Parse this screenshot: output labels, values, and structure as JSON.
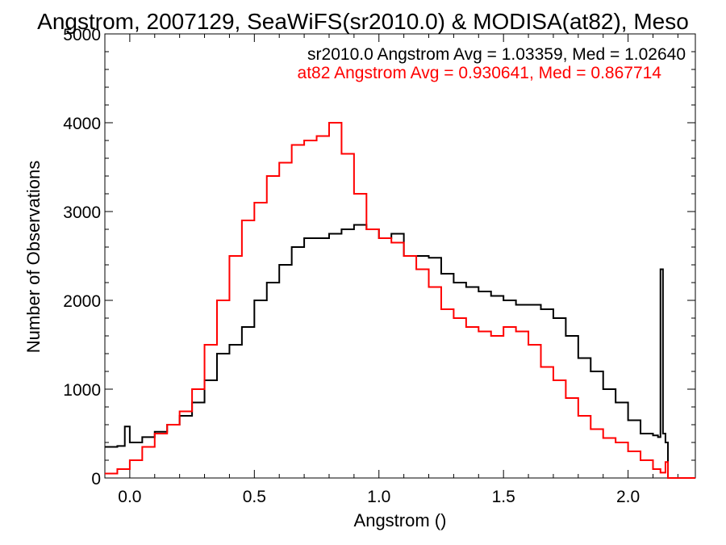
{
  "colors": {
    "series_sr2010": "#000000",
    "series_at82": "#ff0000",
    "axis": "#000000",
    "background": "#ffffff"
  },
  "chart_data": {
    "type": "line",
    "style": "step-histogram",
    "title": "Angstrom, 2007129, SeaWiFS(sr2010.0) & MODISA(at82), Meso",
    "xlabel": "Angstrom ()",
    "ylabel": "Number of Observations",
    "xlim": [
      -0.1,
      2.27
    ],
    "ylim": [
      0,
      5000
    ],
    "xticks": [
      0.0,
      0.5,
      1.0,
      1.5,
      2.0
    ],
    "xtick_labels": [
      "0.0",
      "0.5",
      "1.0",
      "1.5",
      "2.0"
    ],
    "yticks": [
      0,
      1000,
      2000,
      3000,
      4000,
      5000
    ],
    "ytick_labels": [
      "0",
      "1000",
      "2000",
      "3000",
      "4000",
      "5000"
    ],
    "grid": false,
    "annotations": [
      "sr2010.0 Angstrom Avg = 1.03359, Med = 1.02640",
      "at82 Angstrom Avg = 0.930641, Med = 0.867714"
    ],
    "series": [
      {
        "color": "#000000",
        "x": [
          -0.1,
          -0.05,
          -0.02,
          0.0,
          0.05,
          0.1,
          0.15,
          0.2,
          0.25,
          0.3,
          0.35,
          0.4,
          0.45,
          0.5,
          0.55,
          0.6,
          0.65,
          0.7,
          0.75,
          0.8,
          0.85,
          0.9,
          0.95,
          1.0,
          1.05,
          1.1,
          1.15,
          1.2,
          1.25,
          1.3,
          1.35,
          1.4,
          1.45,
          1.5,
          1.55,
          1.6,
          1.65,
          1.7,
          1.75,
          1.8,
          1.85,
          1.9,
          1.95,
          2.0,
          2.05,
          2.1,
          2.12,
          2.13,
          2.14,
          2.15,
          2.16,
          2.2,
          2.27
        ],
        "y": [
          350,
          360,
          580,
          400,
          460,
          520,
          600,
          700,
          850,
          1100,
          1400,
          1500,
          1700,
          2000,
          2200,
          2400,
          2600,
          2700,
          2700,
          2750,
          2800,
          2850,
          2800,
          2700,
          2750,
          2500,
          2500,
          2480,
          2300,
          2200,
          2150,
          2100,
          2050,
          2000,
          1950,
          1950,
          1900,
          1800,
          1600,
          1350,
          1200,
          1000,
          850,
          650,
          500,
          480,
          460,
          2350,
          500,
          400,
          0,
          0,
          0
        ]
      },
      {
        "color": "#ff0000",
        "x": [
          -0.1,
          -0.05,
          0.0,
          0.05,
          0.1,
          0.15,
          0.2,
          0.25,
          0.3,
          0.35,
          0.4,
          0.45,
          0.5,
          0.55,
          0.6,
          0.65,
          0.7,
          0.75,
          0.8,
          0.85,
          0.9,
          0.95,
          1.0,
          1.05,
          1.1,
          1.15,
          1.2,
          1.25,
          1.3,
          1.35,
          1.4,
          1.45,
          1.5,
          1.55,
          1.6,
          1.65,
          1.7,
          1.75,
          1.8,
          1.85,
          1.9,
          1.95,
          2.0,
          2.05,
          2.1,
          2.13,
          2.15,
          2.16,
          2.2,
          2.27
        ],
        "y": [
          50,
          100,
          200,
          350,
          500,
          600,
          750,
          1000,
          1500,
          2000,
          2500,
          2900,
          3100,
          3400,
          3550,
          3750,
          3800,
          3850,
          4000,
          3650,
          3200,
          2800,
          2700,
          2650,
          2500,
          2350,
          2150,
          1900,
          1800,
          1700,
          1650,
          1600,
          1700,
          1650,
          1500,
          1250,
          1100,
          900,
          700,
          550,
          450,
          400,
          300,
          200,
          100,
          60,
          180,
          0,
          0,
          0
        ]
      }
    ]
  }
}
